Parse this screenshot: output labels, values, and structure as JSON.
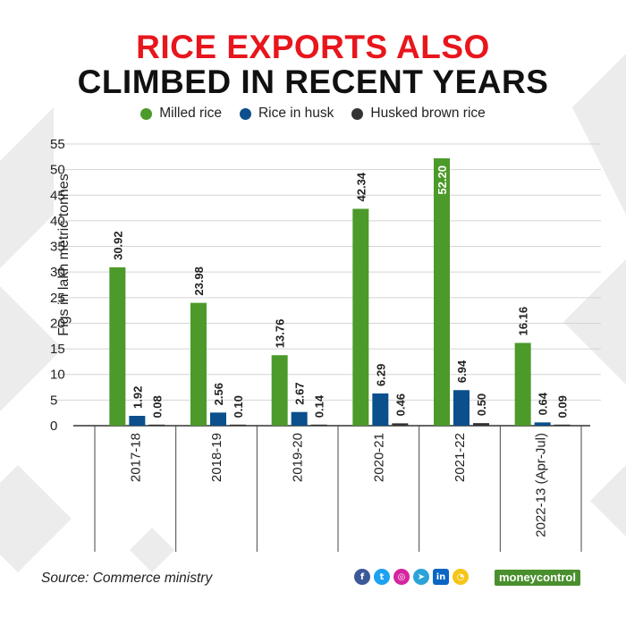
{
  "title": {
    "line1": "RICE EXPORTS ALSO",
    "line2": "CLIMBED IN RECENT YEARS"
  },
  "legend": [
    {
      "label": "Milled rice",
      "color": "#4c9a2a"
    },
    {
      "label": "Rice in husk",
      "color": "#0b4f8c"
    },
    {
      "label": "Husked brown rice",
      "color": "#333333"
    }
  ],
  "source": "Source: Commerce ministry",
  "brand": "moneycontrol",
  "social_icons": [
    "facebook-icon",
    "twitter-icon",
    "instagram-icon",
    "telegram-icon",
    "linkedin-icon",
    "koo-icon"
  ],
  "chart_data": {
    "type": "bar",
    "ylabel": "Figs in lakh metric tonnes",
    "ylim": [
      0,
      55
    ],
    "yticks": [
      0,
      5,
      10,
      15,
      20,
      25,
      30,
      35,
      40,
      45,
      50,
      55
    ],
    "grid": true,
    "legend_position": "top-center",
    "categories": [
      "2017-18",
      "2018-19",
      "2019-20",
      "2020-21",
      "2021-22",
      "2022-13 (Apr-Jul)"
    ],
    "series": [
      {
        "name": "Milled rice",
        "color": "#4c9a2a",
        "values": [
          30.92,
          23.98,
          13.76,
          42.34,
          52.2,
          16.16
        ],
        "labels": [
          "30.92",
          "23.98",
          "13.76",
          "42.34",
          "52.20",
          "16.16"
        ]
      },
      {
        "name": "Rice in husk",
        "color": "#0b4f8c",
        "values": [
          1.92,
          2.56,
          2.67,
          6.29,
          6.94,
          0.64
        ],
        "labels": [
          "1.92",
          "2.56",
          "2.67",
          "6.29",
          "6.94",
          "0.64"
        ]
      },
      {
        "name": "Husked brown rice",
        "color": "#333333",
        "values": [
          0.08,
          0.1,
          0.14,
          0.46,
          0.5,
          0.09
        ],
        "labels": [
          "0.08",
          "0.10",
          "0.14",
          "0.46",
          "0.50",
          "0.09"
        ]
      }
    ]
  }
}
